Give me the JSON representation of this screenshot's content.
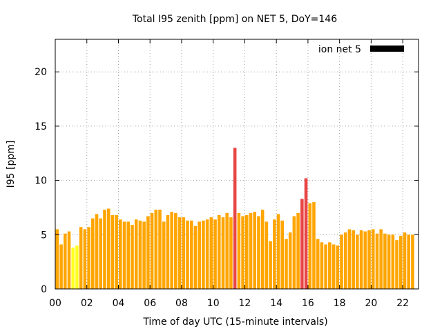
{
  "chart_data": {
    "type": "bar",
    "title": "Total I95 zenith [ppm] on NET 5, DoY=146",
    "xlabel": "Time of day UTC (15-minute intervals)",
    "ylabel": "I95 [ppm]",
    "xlim": [
      0,
      23
    ],
    "ylim": [
      0,
      23
    ],
    "grid": true,
    "legend": {
      "position": "top-right",
      "entries": [
        {
          "name": "ion net 5",
          "color": "#000000"
        }
      ]
    },
    "x_ticks": [
      {
        "value": 0,
        "label": "00"
      },
      {
        "value": 2,
        "label": "02"
      },
      {
        "value": 4,
        "label": "04"
      },
      {
        "value": 6,
        "label": "06"
      },
      {
        "value": 8,
        "label": "08"
      },
      {
        "value": 10,
        "label": "10"
      },
      {
        "value": 12,
        "label": "12"
      },
      {
        "value": 14,
        "label": "14"
      },
      {
        "value": 16,
        "label": "16"
      },
      {
        "value": 18,
        "label": "18"
      },
      {
        "value": 20,
        "label": "20"
      },
      {
        "value": 22,
        "label": "22"
      }
    ],
    "y_ticks": [
      {
        "value": 0,
        "label": "0"
      },
      {
        "value": 5,
        "label": "5"
      },
      {
        "value": 10,
        "label": "10"
      },
      {
        "value": 15,
        "label": "15"
      },
      {
        "value": 20,
        "label": "20"
      }
    ],
    "bar_interval_hours": 0.25,
    "color_scale": {
      "low": "#ffff22",
      "mid": "#ffa500",
      "high": "#e84545"
    },
    "series": [
      {
        "name": "ion net 5",
        "values": [
          5.5,
          4.1,
          5.1,
          5.3,
          3.8,
          4.0,
          5.7,
          5.5,
          5.7,
          6.5,
          6.9,
          6.5,
          7.3,
          7.4,
          6.8,
          6.8,
          6.4,
          6.2,
          6.2,
          5.9,
          6.4,
          6.3,
          6.2,
          6.7,
          7.0,
          7.3,
          7.3,
          6.2,
          6.8,
          7.1,
          7.0,
          6.6,
          6.6,
          6.3,
          6.3,
          5.8,
          6.2,
          6.3,
          6.4,
          6.6,
          6.4,
          6.8,
          6.6,
          7.0,
          6.6,
          13.0,
          7.0,
          6.7,
          6.8,
          7.0,
          7.1,
          6.7,
          7.3,
          6.2,
          4.4,
          6.4,
          6.9,
          6.3,
          4.6,
          5.2,
          6.7,
          7.0,
          8.3,
          10.2,
          7.9,
          8.0,
          4.6,
          4.3,
          4.1,
          4.3,
          4.1,
          4.0,
          5.0,
          5.2,
          5.5,
          5.4,
          5.0,
          5.4,
          5.3,
          5.4,
          5.5,
          5.1,
          5.5,
          5.1,
          5.0,
          5.0,
          4.5,
          4.9,
          5.2,
          5.0,
          5.0
        ],
        "colors": [
          "mid",
          "mid",
          "mid",
          "mid",
          "low",
          "low",
          "mid",
          "mid",
          "mid",
          "mid",
          "mid",
          "mid",
          "mid",
          "mid",
          "mid",
          "mid",
          "mid",
          "mid",
          "mid",
          "mid",
          "mid",
          "mid",
          "mid",
          "mid",
          "mid",
          "mid",
          "mid",
          "mid",
          "mid",
          "mid",
          "mid",
          "mid",
          "mid",
          "mid",
          "mid",
          "mid",
          "mid",
          "mid",
          "mid",
          "mid",
          "mid",
          "mid",
          "mid",
          "mid",
          "mid",
          "high",
          "mid",
          "mid",
          "mid",
          "mid",
          "mid",
          "mid",
          "mid",
          "mid",
          "mid",
          "mid",
          "mid",
          "mid",
          "mid",
          "mid",
          "mid",
          "mid",
          "high",
          "high",
          "mid",
          "mid",
          "mid",
          "mid",
          "mid",
          "mid",
          "mid",
          "mid",
          "mid",
          "mid",
          "mid",
          "mid",
          "mid",
          "mid",
          "mid",
          "mid",
          "mid",
          "mid",
          "mid",
          "mid",
          "mid",
          "mid",
          "mid",
          "mid",
          "mid",
          "mid",
          "mid"
        ]
      }
    ]
  }
}
